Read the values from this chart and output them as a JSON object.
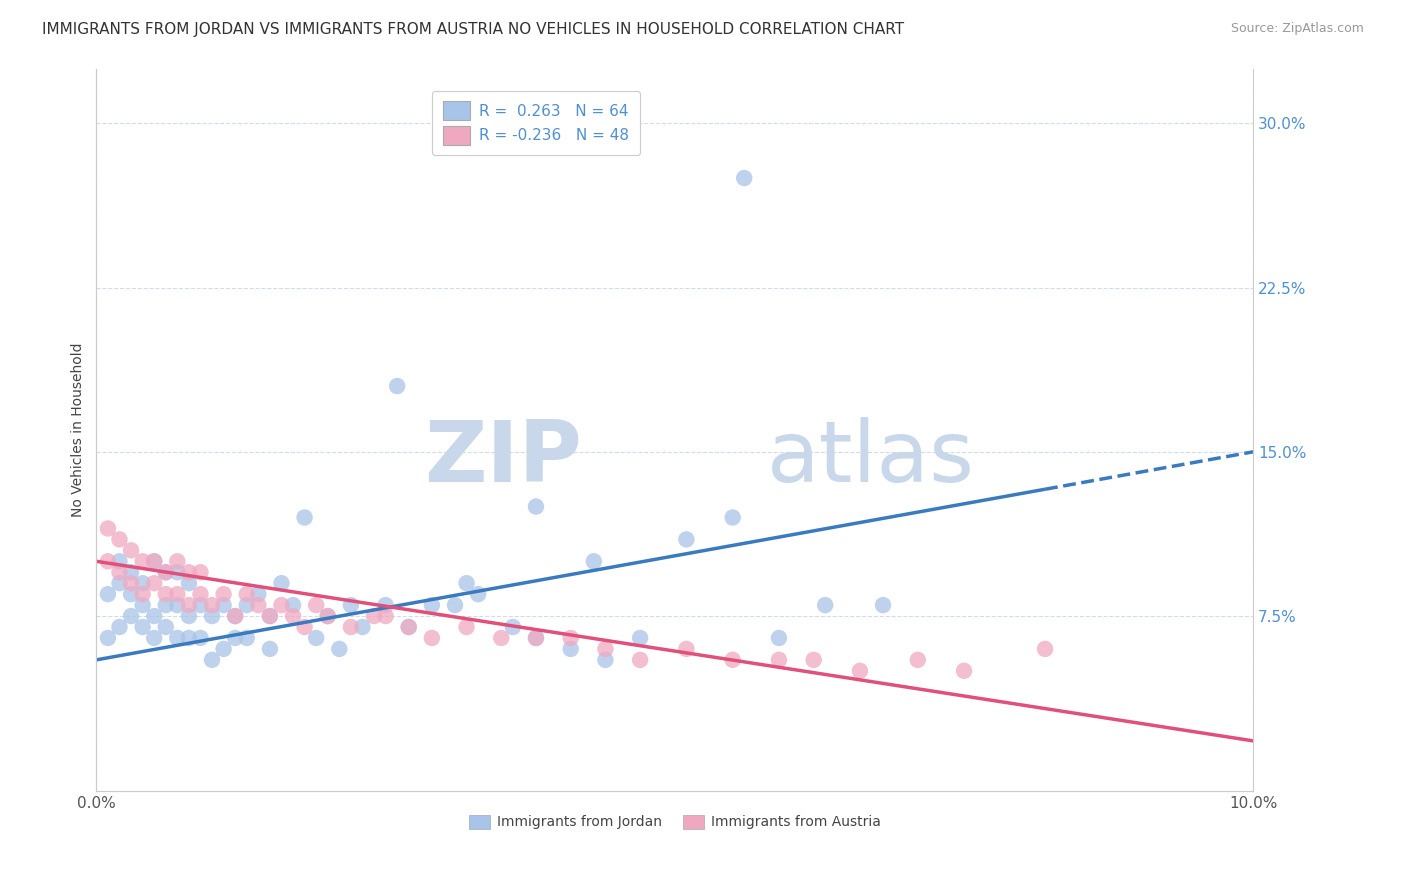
{
  "title": "IMMIGRANTS FROM JORDAN VS IMMIGRANTS FROM AUSTRIA NO VEHICLES IN HOUSEHOLD CORRELATION CHART",
  "source": "Source: ZipAtlas.com",
  "ylabel": "No Vehicles in Household",
  "xlim": [
    0.0,
    0.1
  ],
  "ylim": [
    -0.005,
    0.325
  ],
  "legend_r1": "R =  0.263",
  "legend_n1": "N = 64",
  "legend_r2": "R = -0.236",
  "legend_n2": "N = 48",
  "jordan_color": "#a8c4e8",
  "austria_color": "#f0a8c0",
  "jordan_line_color": "#3a7abf",
  "austria_line_color": "#e0507a",
  "tick_label_color": "#5090d0",
  "jordan_line_y0": 0.055,
  "jordan_line_y1": 0.15,
  "jordan_line_solid_end": 0.082,
  "austria_line_y0": 0.1,
  "austria_line_y1": 0.018,
  "jordan_scatter_x": [
    0.001,
    0.001,
    0.002,
    0.002,
    0.002,
    0.003,
    0.003,
    0.003,
    0.004,
    0.004,
    0.004,
    0.005,
    0.005,
    0.005,
    0.006,
    0.006,
    0.006,
    0.007,
    0.007,
    0.007,
    0.008,
    0.008,
    0.008,
    0.009,
    0.009,
    0.01,
    0.01,
    0.011,
    0.011,
    0.012,
    0.012,
    0.013,
    0.013,
    0.014,
    0.015,
    0.015,
    0.016,
    0.017,
    0.018,
    0.019,
    0.02,
    0.021,
    0.022,
    0.023,
    0.025,
    0.027,
    0.029,
    0.031,
    0.033,
    0.036,
    0.038,
    0.041,
    0.044,
    0.047,
    0.051,
    0.055,
    0.059,
    0.063,
    0.068,
    0.032,
    0.026,
    0.043,
    0.038,
    0.056
  ],
  "jordan_scatter_y": [
    0.065,
    0.085,
    0.07,
    0.09,
    0.1,
    0.075,
    0.085,
    0.095,
    0.07,
    0.08,
    0.09,
    0.065,
    0.075,
    0.1,
    0.07,
    0.08,
    0.095,
    0.065,
    0.08,
    0.095,
    0.065,
    0.075,
    0.09,
    0.065,
    0.08,
    0.055,
    0.075,
    0.06,
    0.08,
    0.065,
    0.075,
    0.065,
    0.08,
    0.085,
    0.06,
    0.075,
    0.09,
    0.08,
    0.12,
    0.065,
    0.075,
    0.06,
    0.08,
    0.07,
    0.08,
    0.07,
    0.08,
    0.08,
    0.085,
    0.07,
    0.065,
    0.06,
    0.055,
    0.065,
    0.11,
    0.12,
    0.065,
    0.08,
    0.08,
    0.09,
    0.18,
    0.1,
    0.125,
    0.275
  ],
  "austria_scatter_x": [
    0.001,
    0.001,
    0.002,
    0.002,
    0.003,
    0.003,
    0.004,
    0.004,
    0.005,
    0.005,
    0.006,
    0.006,
    0.007,
    0.007,
    0.008,
    0.008,
    0.009,
    0.009,
    0.01,
    0.011,
    0.012,
    0.013,
    0.014,
    0.015,
    0.016,
    0.017,
    0.018,
    0.019,
    0.02,
    0.022,
    0.024,
    0.025,
    0.027,
    0.029,
    0.032,
    0.035,
    0.038,
    0.041,
    0.044,
    0.047,
    0.051,
    0.055,
    0.059,
    0.062,
    0.066,
    0.071,
    0.075,
    0.082
  ],
  "austria_scatter_y": [
    0.1,
    0.115,
    0.095,
    0.11,
    0.09,
    0.105,
    0.085,
    0.1,
    0.09,
    0.1,
    0.085,
    0.095,
    0.085,
    0.1,
    0.08,
    0.095,
    0.085,
    0.095,
    0.08,
    0.085,
    0.075,
    0.085,
    0.08,
    0.075,
    0.08,
    0.075,
    0.07,
    0.08,
    0.075,
    0.07,
    0.075,
    0.075,
    0.07,
    0.065,
    0.07,
    0.065,
    0.065,
    0.065,
    0.06,
    0.055,
    0.06,
    0.055,
    0.055,
    0.055,
    0.05,
    0.055,
    0.05,
    0.06
  ],
  "watermark_zip": "ZIP",
  "watermark_atlas": "atlas",
  "watermark_color": "#c8d8ea",
  "background_color": "#ffffff",
  "grid_color": "#d0dcea",
  "title_fontsize": 11,
  "label_fontsize": 10,
  "tick_fontsize": 11,
  "legend_fontsize": 11
}
